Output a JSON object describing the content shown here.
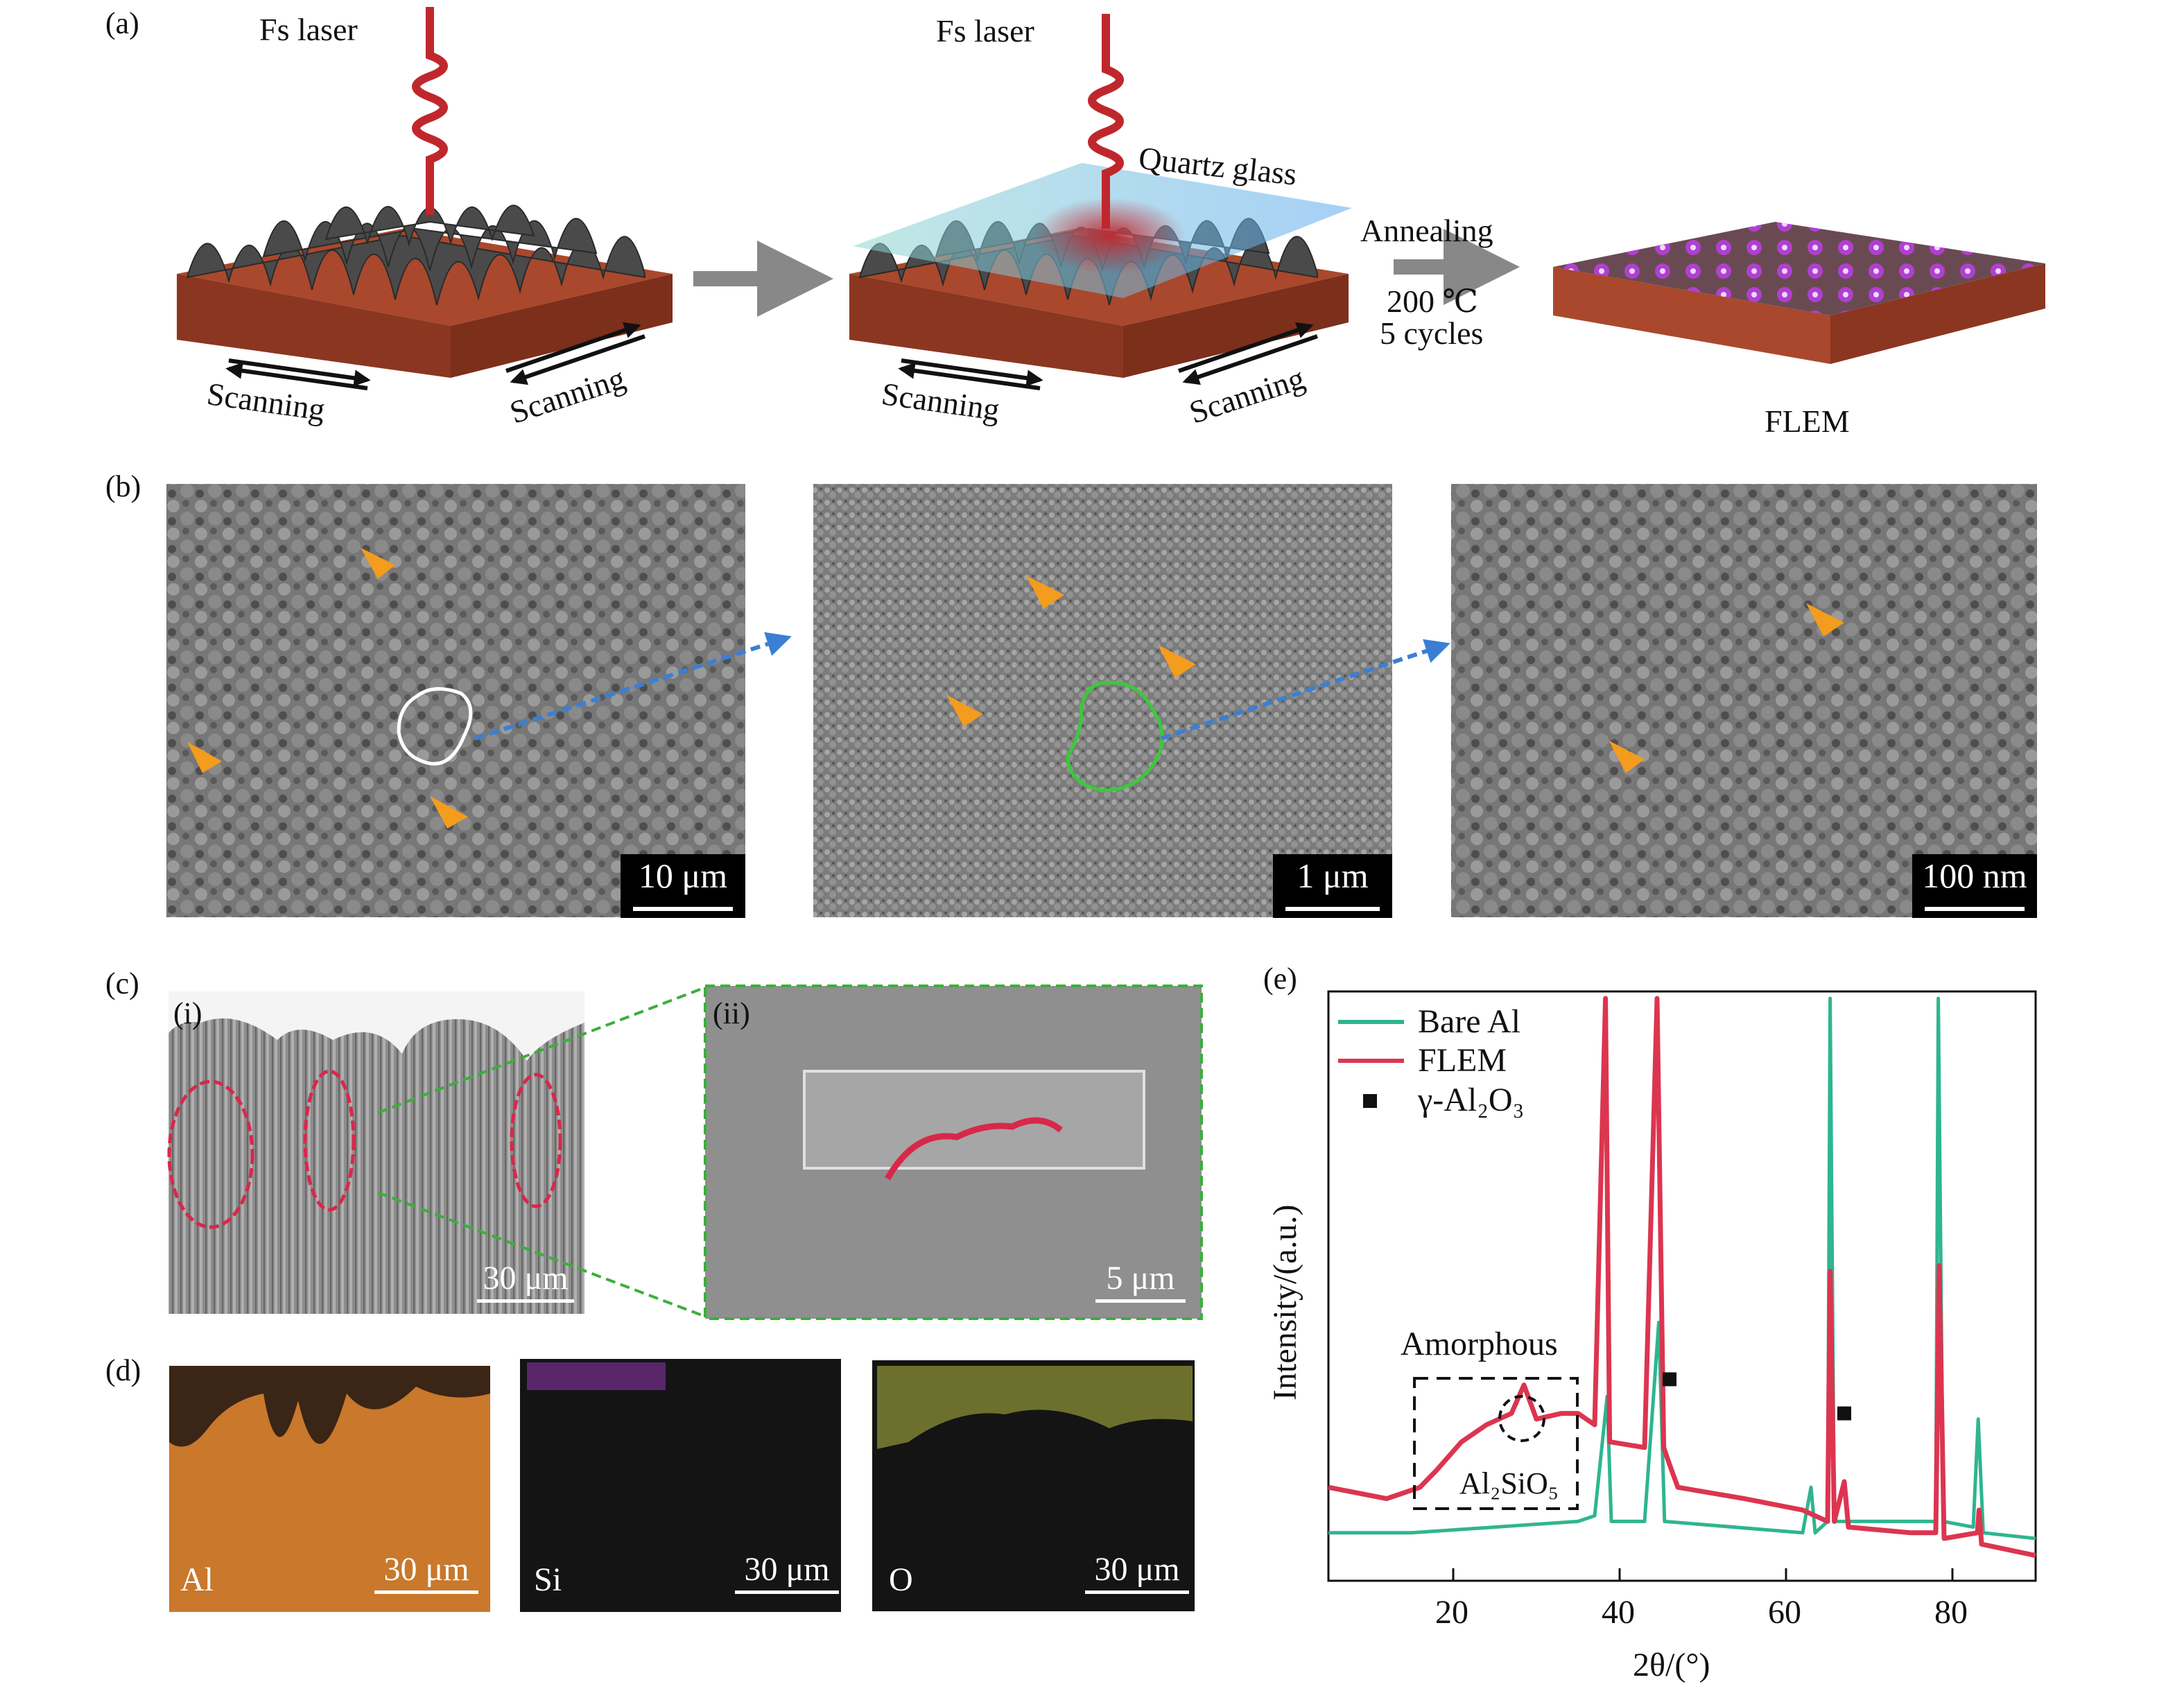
{
  "panel_labels": {
    "a": "(a)",
    "b": "(b)",
    "c": "(c)",
    "d": "(d)",
    "e": "(e)",
    "ci": "(i)",
    "cii": "(ii)"
  },
  "panel_a": {
    "laser_label_1": "Fs laser",
    "laser_label_2": "Fs laser",
    "quartz_label": "Quartz glass",
    "scanning_label": "Scanning",
    "annealing_label": "Annealing",
    "temperature_label": "200 ℃",
    "cycles_label": "5 cycles",
    "product_label": "FLEM",
    "colors": {
      "substrate": "#a9482c",
      "peaks": "#4a4a4a",
      "laser": "#c0272d",
      "quartz": "#8fd6cf",
      "coating": "#b040d0"
    }
  },
  "panel_b": {
    "scale_1": "10 μm",
    "scale_2": "1 μm",
    "scale_3": "100 nm",
    "outline_colors": {
      "first": "#ffffff",
      "second": "#3cc83c"
    },
    "arrow_color": "#f39c1e",
    "link_arrow_color": "#3b7fd4"
  },
  "panel_c": {
    "scale_i": "30 μm",
    "scale_ii": "5 μm",
    "ellipse_color": "#d8284a",
    "zoom_line_color": "#3cae3c"
  },
  "panel_d": {
    "maps": [
      {
        "element": "Al",
        "scale": "30 μm",
        "color": "#c9782c"
      },
      {
        "element": "Si",
        "scale": "30 μm",
        "color": "#a040c0"
      },
      {
        "element": "O",
        "scale": "30 μm",
        "color": "#b8c040"
      }
    ]
  },
  "chart_data": {
    "type": "line",
    "xlabel": "2θ/(°)",
    "ylabel": "Intensity/(a.u.)",
    "xlim": [
      5,
      90
    ],
    "x_ticks": [
      20,
      40,
      60,
      80
    ],
    "ylim": [
      0,
      100
    ],
    "legend_position": "top-left",
    "series": [
      {
        "name": "Bare Al",
        "color": "#2fb58f",
        "points": [
          [
            5,
            6
          ],
          [
            15,
            6
          ],
          [
            25,
            7
          ],
          [
            35,
            8
          ],
          [
            37,
            9
          ],
          [
            38.5,
            30
          ],
          [
            39,
            8
          ],
          [
            43,
            8
          ],
          [
            44.7,
            43
          ],
          [
            45.4,
            8
          ],
          [
            62,
            6
          ],
          [
            63,
            14
          ],
          [
            63.5,
            6
          ],
          [
            65,
            8
          ],
          [
            65.3,
            100
          ],
          [
            65.8,
            8
          ],
          [
            78,
            8
          ],
          [
            78.3,
            100
          ],
          [
            78.9,
            8
          ],
          [
            82.5,
            7
          ],
          [
            83.1,
            26
          ],
          [
            83.7,
            6
          ],
          [
            90,
            5
          ]
        ]
      },
      {
        "name": "FLEM",
        "color": "#dc3550",
        "points": [
          [
            5,
            14
          ],
          [
            12,
            12
          ],
          [
            16,
            14
          ],
          [
            18,
            17
          ],
          [
            21,
            22
          ],
          [
            24,
            25
          ],
          [
            27,
            27
          ],
          [
            28.5,
            32
          ],
          [
            30,
            26
          ],
          [
            33,
            27
          ],
          [
            35,
            27
          ],
          [
            37,
            25
          ],
          [
            38.3,
            100
          ],
          [
            38.8,
            22
          ],
          [
            43,
            21
          ],
          [
            44.5,
            100
          ],
          [
            45.3,
            21
          ],
          [
            46,
            18
          ],
          [
            47,
            14
          ],
          [
            55,
            12
          ],
          [
            62,
            10
          ],
          [
            65,
            8
          ],
          [
            65.3,
            52
          ],
          [
            65.8,
            8
          ],
          [
            67,
            15
          ],
          [
            67.5,
            7
          ],
          [
            75,
            6
          ],
          [
            78,
            6
          ],
          [
            78.4,
            53
          ],
          [
            79,
            5
          ],
          [
            83,
            6
          ],
          [
            83.2,
            10
          ],
          [
            83.5,
            4
          ],
          [
            90,
            2
          ]
        ]
      }
    ],
    "markers": {
      "name": "γ-Al₂O₃",
      "x": [
        46,
        67
      ]
    },
    "annotations": {
      "amorphous": "Amorphous",
      "phase": "Al₂SiO₅"
    }
  }
}
